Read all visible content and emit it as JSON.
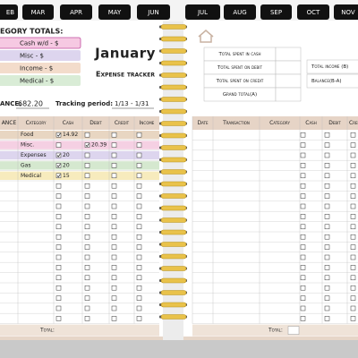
{
  "tabs": [
    "EB",
    "MAR",
    "APR",
    "MAY",
    "JUN",
    "JUL",
    "AUG",
    "SEP",
    "OCT",
    "NOV"
  ],
  "left_page": {
    "category_totals": {
      "heading": "EGORY TOTALS:",
      "items": [
        {
          "label": "Cash w/d - $",
          "color": "#f6c9e2"
        },
        {
          "label": "Misc - $",
          "color": "#ddd5ee"
        },
        {
          "label": "Income - $",
          "color": "#f3dccb"
        },
        {
          "label": "Medical - $",
          "color": "#d9ecd6"
        }
      ]
    },
    "title": "January",
    "subtitle": "Expense tracker",
    "balance_label": "ANCE:",
    "balance_value": "682.20",
    "tracking_label": "Tracking period:",
    "tracking_value": "1/13 - 1/31",
    "table": {
      "columns": [
        "ANCE",
        "Category",
        "Cash",
        "Debit",
        "Credit",
        "Income"
      ],
      "rows": [
        {
          "category": "Food",
          "cash": "14.92",
          "color": "#e8d6c2"
        },
        {
          "category": "Misc.",
          "debit": "20.39",
          "color": "#f5d0e3"
        },
        {
          "category": "Expenses",
          "cash": "20",
          "color": "#ddd5ee"
        },
        {
          "category": "Gas",
          "cash": "20",
          "color": "#d5e8cf"
        },
        {
          "category": "Medical",
          "cash": "15",
          "color": "#f7ebbd"
        }
      ],
      "total_label": "Total:"
    }
  },
  "right_page": {
    "summary": [
      "Total spent in cash",
      "Total spent on debit",
      "Total spent on credit",
      "Grand total(A)"
    ],
    "income_label": "Total income (B)",
    "balance_label": "Balance(B-A)",
    "table": {
      "columns": [
        "Date",
        "Transaction",
        "Category",
        "Cash",
        "Debit",
        "Credit"
      ],
      "total_label": "Total:"
    }
  }
}
